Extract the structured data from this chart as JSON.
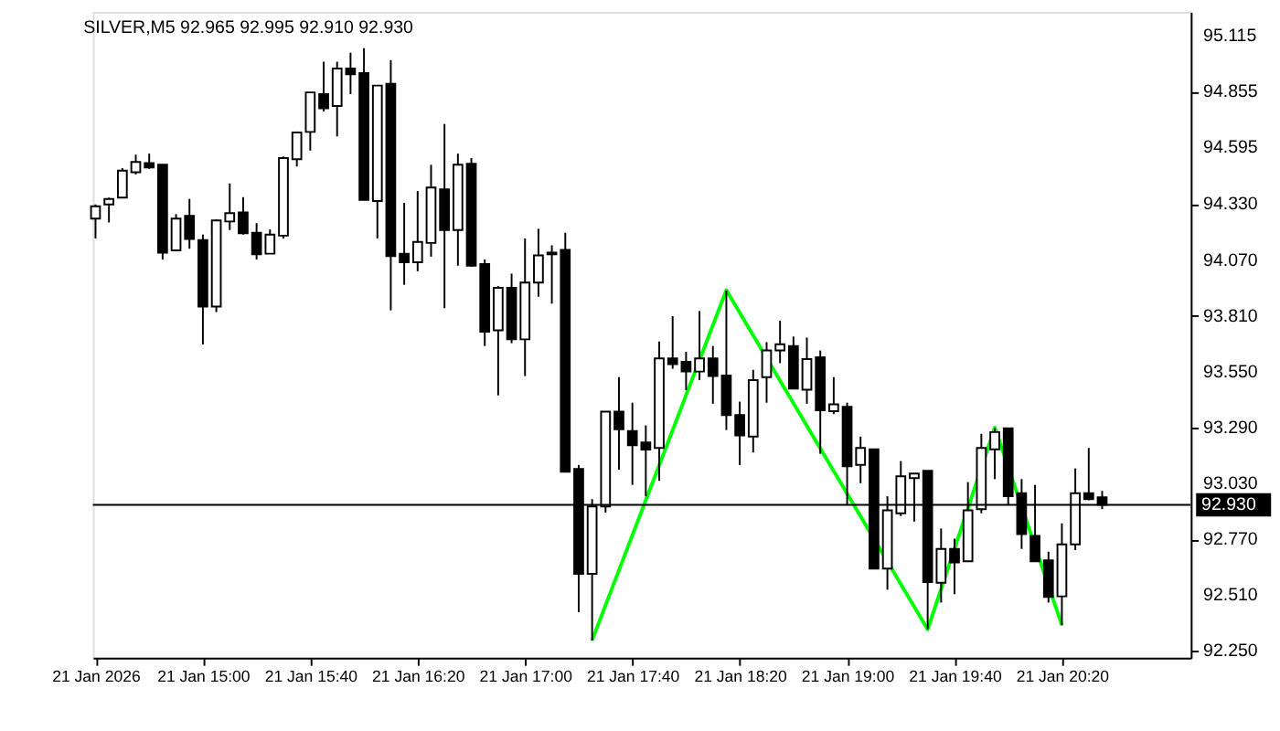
{
  "chart_data": {
    "type": "candlestick",
    "title": "SILVER,M5  92.965 92.995 92.910 92.930",
    "x": [
      "2026-01-21T14:20",
      "2026-01-21T14:25",
      "2026-01-21T14:30",
      "2026-01-21T14:35",
      "2026-01-21T14:40",
      "2026-01-21T14:45",
      "2026-01-21T14:50",
      "2026-01-21T14:55",
      "2026-01-21T15:00",
      "2026-01-21T15:05",
      "2026-01-21T15:10",
      "2026-01-21T15:15",
      "2026-01-21T15:20",
      "2026-01-21T15:25",
      "2026-01-21T15:30",
      "2026-01-21T15:35",
      "2026-01-21T15:40",
      "2026-01-21T15:45",
      "2026-01-21T15:50",
      "2026-01-21T15:55",
      "2026-01-21T16:00",
      "2026-01-21T16:05",
      "2026-01-21T16:10",
      "2026-01-21T16:15",
      "2026-01-21T16:20",
      "2026-01-21T16:25",
      "2026-01-21T16:30",
      "2026-01-21T16:35",
      "2026-01-21T16:40",
      "2026-01-21T16:45",
      "2026-01-21T16:50",
      "2026-01-21T16:55",
      "2026-01-21T17:00",
      "2026-01-21T17:05",
      "2026-01-21T17:10",
      "2026-01-21T17:15",
      "2026-01-21T17:20",
      "2026-01-21T17:25",
      "2026-01-21T17:30",
      "2026-01-21T17:35",
      "2026-01-21T17:40",
      "2026-01-21T17:45",
      "2026-01-21T17:50",
      "2026-01-21T17:55",
      "2026-01-21T18:00",
      "2026-01-21T18:05",
      "2026-01-21T18:10",
      "2026-01-21T18:15",
      "2026-01-21T18:20",
      "2026-01-21T18:25",
      "2026-01-21T18:30",
      "2026-01-21T18:35",
      "2026-01-21T18:40",
      "2026-01-21T18:45",
      "2026-01-21T18:50",
      "2026-01-21T18:55",
      "2026-01-21T19:00",
      "2026-01-21T19:05",
      "2026-01-21T19:10",
      "2026-01-21T19:15",
      "2026-01-21T19:20",
      "2026-01-21T19:25",
      "2026-01-21T19:30",
      "2026-01-21T19:35",
      "2026-01-21T19:40",
      "2026-01-21T19:45",
      "2026-01-21T19:50",
      "2026-01-21T19:55",
      "2026-01-21T20:00",
      "2026-01-21T20:05",
      "2026-01-21T20:10",
      "2026-01-21T20:15",
      "2026-01-21T20:20",
      "2026-01-21T20:25",
      "2026-01-21T20:30",
      "2026-01-21T20:35"
    ],
    "ohlc": [
      [
        94.263,
        94.329,
        94.171,
        94.321
      ],
      [
        94.329,
        94.361,
        94.245,
        94.355
      ],
      [
        94.361,
        94.498,
        94.361,
        94.487
      ],
      [
        94.479,
        94.561,
        94.469,
        94.527
      ],
      [
        94.522,
        94.566,
        94.495,
        94.501
      ],
      [
        94.514,
        94.514,
        94.073,
        94.105
      ],
      [
        94.115,
        94.284,
        94.115,
        94.263
      ],
      [
        94.276,
        94.355,
        94.123,
        94.168
      ],
      [
        94.163,
        94.189,
        93.677,
        93.854
      ],
      [
        93.854,
        94.26,
        93.828,
        94.255
      ],
      [
        94.25,
        94.427,
        94.21,
        94.289
      ],
      [
        94.292,
        94.363,
        94.189,
        94.195
      ],
      [
        94.197,
        94.242,
        94.073,
        94.097
      ],
      [
        94.1,
        94.213,
        94.1,
        94.189
      ],
      [
        94.184,
        94.553,
        94.171,
        94.545
      ],
      [
        94.54,
        94.669,
        94.506,
        94.664
      ],
      [
        94.667,
        94.851,
        94.58,
        94.851
      ],
      [
        94.843,
        94.994,
        94.762,
        94.777
      ],
      [
        94.788,
        94.994,
        94.646,
        94.962
      ],
      [
        94.962,
        95.036,
        94.843,
        94.936
      ],
      [
        94.941,
        95.057,
        94.35,
        94.35
      ],
      [
        94.345,
        94.883,
        94.171,
        94.883
      ],
      [
        94.891,
        95.002,
        93.836,
        94.089
      ],
      [
        94.1,
        94.337,
        93.955,
        94.06
      ],
      [
        94.06,
        94.392,
        94.018,
        94.155
      ],
      [
        94.15,
        94.514,
        94.086,
        94.408
      ],
      [
        94.4,
        94.704,
        93.846,
        94.21
      ],
      [
        94.21,
        94.566,
        94.044,
        94.514
      ],
      [
        94.519,
        94.545,
        94.039,
        94.044
      ],
      [
        94.052,
        94.073,
        93.67,
        93.736
      ],
      [
        93.743,
        93.949,
        93.44,
        93.941
      ],
      [
        93.941,
        94.007,
        93.683,
        93.701
      ],
      [
        93.701,
        94.171,
        93.53,
        93.965
      ],
      [
        93.965,
        94.216,
        93.899,
        94.092
      ],
      [
        94.105,
        94.139,
        93.867,
        94.097
      ],
      [
        94.118,
        94.197,
        93.084,
        93.084
      ],
      [
        93.097,
        93.116,
        92.43,
        92.609
      ],
      [
        92.609,
        92.957,
        92.298,
        92.923
      ],
      [
        92.923,
        93.364,
        92.894,
        93.364
      ],
      [
        93.364,
        93.525,
        93.094,
        93.282
      ],
      [
        93.274,
        93.406,
        93.023,
        93.208
      ],
      [
        93.221,
        93.3,
        92.97,
        93.187
      ],
      [
        93.195,
        93.691,
        93.042,
        93.612
      ],
      [
        93.612,
        93.809,
        93.564,
        93.585
      ],
      [
        93.596,
        93.643,
        93.464,
        93.551
      ],
      [
        93.551,
        93.833,
        93.511,
        93.612
      ],
      [
        93.612,
        93.67,
        93.401,
        93.53
      ],
      [
        93.532,
        93.928,
        93.279,
        93.348
      ],
      [
        93.348,
        93.411,
        93.116,
        93.253
      ],
      [
        93.248,
        93.559,
        93.174,
        93.511
      ],
      [
        93.525,
        93.688,
        93.406,
        93.649
      ],
      [
        93.649,
        93.788,
        93.59,
        93.678
      ],
      [
        93.67,
        93.714,
        93.472,
        93.472
      ],
      [
        93.466,
        93.709,
        93.401,
        93.609
      ],
      [
        93.617,
        93.649,
        93.168,
        93.371
      ],
      [
        93.366,
        93.525,
        93.353,
        93.398
      ],
      [
        93.387,
        93.406,
        92.931,
        93.11
      ],
      [
        93.116,
        93.248,
        93.031,
        93.195
      ],
      [
        93.189,
        93.189,
        92.633,
        92.633
      ],
      [
        92.633,
        92.97,
        92.535,
        92.905
      ],
      [
        92.891,
        93.134,
        92.878,
        93.063
      ],
      [
        93.055,
        93.076,
        92.852,
        93.076
      ],
      [
        93.089,
        93.089,
        92.351,
        92.57
      ],
      [
        92.567,
        92.82,
        92.475,
        92.725
      ],
      [
        92.725,
        92.773,
        92.514,
        92.662
      ],
      [
        92.667,
        93.036,
        92.667,
        92.905
      ],
      [
        92.91,
        93.261,
        92.891,
        93.195
      ],
      [
        93.189,
        93.287,
        93.05,
        93.269
      ],
      [
        93.287,
        93.287,
        92.931,
        92.97
      ],
      [
        92.984,
        93.05,
        92.725,
        92.794
      ],
      [
        92.786,
        93.023,
        92.667,
        92.667
      ],
      [
        92.672,
        92.712,
        92.475,
        92.501
      ],
      [
        92.504,
        92.844,
        92.369,
        92.746
      ],
      [
        92.746,
        93.1,
        92.72,
        92.984
      ],
      [
        92.984,
        93.195,
        92.952,
        92.957
      ],
      [
        92.965,
        92.995,
        92.91,
        92.93
      ]
    ],
    "series": [
      {
        "type": "line",
        "color": "#00ff00",
        "x": [
          "2026-01-21T17:25",
          "2026-01-21T18:15",
          "2026-01-21T19:30",
          "2026-01-21T19:55",
          "2026-01-21T20:20"
        ],
        "values": [
          92.3,
          93.93,
          92.35,
          93.29,
          92.37
        ]
      }
    ],
    "ref_lines": [
      {
        "axis": "y",
        "value": 92.93,
        "label": "92.930",
        "color": "#000000"
      }
    ],
    "xlim": [
      "2026-01-21T14:19",
      "2026-01-21T21:08"
    ],
    "xticks": [
      {
        "value": "2026-01-21T14:20",
        "label": "21 Jan 2026"
      },
      {
        "value": "2026-01-21T15:00",
        "label": "21 Jan 15:00"
      },
      {
        "value": "2026-01-21T15:40",
        "label": "21 Jan 15:40"
      },
      {
        "value": "2026-01-21T16:20",
        "label": "21 Jan 16:20"
      },
      {
        "value": "2026-01-21T17:00",
        "label": "21 Jan 17:00"
      },
      {
        "value": "2026-01-21T17:40",
        "label": "21 Jan 17:40"
      },
      {
        "value": "2026-01-21T18:20",
        "label": "21 Jan 18:20"
      },
      {
        "value": "2026-01-21T19:00",
        "label": "21 Jan 19:00"
      },
      {
        "value": "2026-01-21T19:40",
        "label": "21 Jan 19:40"
      },
      {
        "value": "2026-01-21T20:20",
        "label": "21 Jan 20:20"
      }
    ],
    "ylim": [
      92.218,
      95.226
    ],
    "yticks": [
      {
        "value": 92.25,
        "label": "92.250"
      },
      {
        "value": 92.51,
        "label": "92.510"
      },
      {
        "value": 92.77,
        "label": "92.770"
      },
      {
        "value": 93.03,
        "label": "93.030"
      },
      {
        "value": 93.29,
        "label": "93.290"
      },
      {
        "value": 93.55,
        "label": "93.550"
      },
      {
        "value": 93.81,
        "label": "93.810"
      },
      {
        "value": 94.07,
        "label": "94.070"
      },
      {
        "value": 94.33,
        "label": "94.330"
      },
      {
        "value": 94.595,
        "label": "94.595"
      },
      {
        "value": 94.855,
        "label": "94.855"
      },
      {
        "value": 95.115,
        "label": "95.115"
      }
    ],
    "grid": false
  }
}
